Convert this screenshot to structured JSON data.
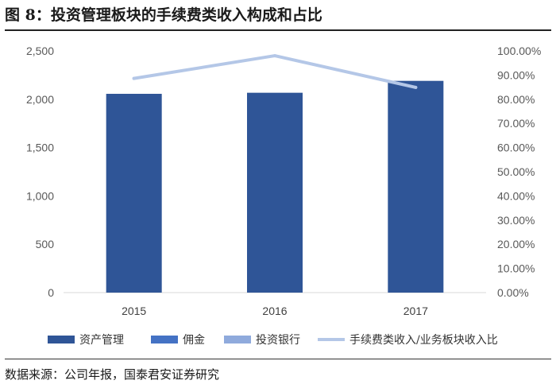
{
  "figure": {
    "title": "图 8：投资管理板块的手续费类收入构成和占比",
    "source": "数据来源：公司年报，国泰君安证券研究"
  },
  "chart_data": {
    "type": "bar",
    "categories": [
      "2015",
      "2016",
      "2017"
    ],
    "series": [
      {
        "name": "资产管理",
        "type": "bar",
        "axis": "left",
        "color": "#2f5597",
        "values": [
          2056,
          2067,
          2190
        ]
      },
      {
        "name": "佣金",
        "type": "bar",
        "axis": "left",
        "color": "#4472c4",
        "values": [
          0,
          0,
          0
        ]
      },
      {
        "name": "投资银行",
        "type": "bar",
        "axis": "left",
        "color": "#8faadc",
        "values": [
          0,
          0,
          0
        ]
      },
      {
        "name": "手续费类收入/业务板块收入比",
        "type": "line",
        "axis": "right",
        "color": "#b4c7e7",
        "values": [
          0.886,
          0.98,
          0.849
        ]
      }
    ],
    "y_left": {
      "min": 0,
      "max": 2500,
      "step": 500,
      "ticks": [
        "0",
        "500",
        "1,000",
        "1,500",
        "2,000",
        "2,500"
      ]
    },
    "y_right": {
      "min": 0,
      "max": 1,
      "step": 0.1,
      "ticks": [
        "0.00%",
        "10.00%",
        "20.00%",
        "30.00%",
        "40.00%",
        "50.00%",
        "60.00%",
        "70.00%",
        "80.00%",
        "90.00%",
        "100.00%"
      ]
    },
    "grid": false,
    "legend": "bottom"
  }
}
